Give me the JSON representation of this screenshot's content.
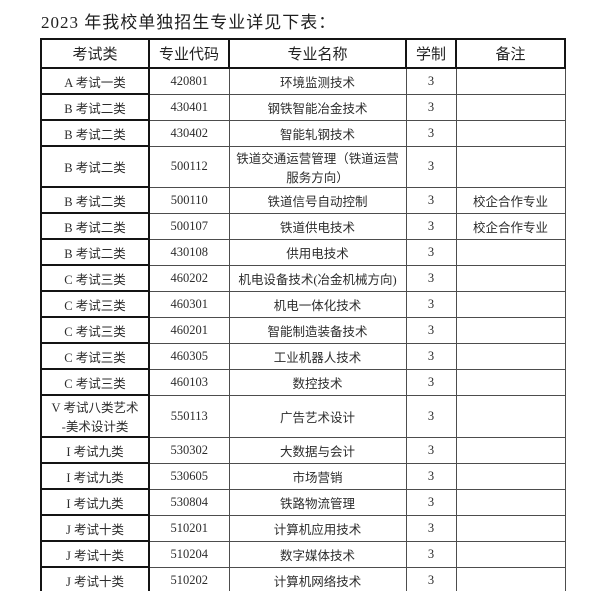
{
  "page": {
    "title": "2023 年我校单独招生专业详见下表："
  },
  "table": {
    "headers": [
      "考试类",
      "专业代码",
      "专业名称",
      "学制",
      "备注"
    ],
    "rows": [
      {
        "category": "A 考试一类",
        "code": "420801",
        "name": "环境监测技术",
        "years": "3",
        "note": ""
      },
      {
        "category": "B 考试二类",
        "code": "430401",
        "name": "钢铁智能冶金技术",
        "years": "3",
        "note": ""
      },
      {
        "category": "B 考试二类",
        "code": "430402",
        "name": "智能轧钢技术",
        "years": "3",
        "note": ""
      },
      {
        "category": "B 考试二类",
        "code": "500112",
        "name": "铁道交通运营管理（铁道运营\n服务方向）",
        "years": "3",
        "note": ""
      },
      {
        "category": "B 考试二类",
        "code": "500110",
        "name": "铁道信号自动控制",
        "years": "3",
        "note": "校企合作专业"
      },
      {
        "category": "B 考试二类",
        "code": "500107",
        "name": "铁道供电技术",
        "years": "3",
        "note": "校企合作专业"
      },
      {
        "category": "B 考试二类",
        "code": "430108",
        "name": "供用电技术",
        "years": "3",
        "note": ""
      },
      {
        "category": "C 考试三类",
        "code": "460202",
        "name": "机电设备技术(冶金机械方向)",
        "years": "3",
        "note": ""
      },
      {
        "category": "C 考试三类",
        "code": "460301",
        "name": "机电一体化技术",
        "years": "3",
        "note": ""
      },
      {
        "category": "C 考试三类",
        "code": "460201",
        "name": "智能制造装备技术",
        "years": "3",
        "note": ""
      },
      {
        "category": "C 考试三类",
        "code": "460305",
        "name": "工业机器人技术",
        "years": "3",
        "note": ""
      },
      {
        "category": "C 考试三类",
        "code": "460103",
        "name": "数控技术",
        "years": "3",
        "note": ""
      },
      {
        "category": "V 考试八类艺术\n-美术设计类",
        "code": "550113",
        "name": "广告艺术设计",
        "years": "3",
        "note": ""
      },
      {
        "category": "I 考试九类",
        "code": "530302",
        "name": "大数据与会计",
        "years": "3",
        "note": ""
      },
      {
        "category": "I 考试九类",
        "code": "530605",
        "name": "市场营销",
        "years": "3",
        "note": ""
      },
      {
        "category": "I 考试九类",
        "code": "530804",
        "name": "铁路物流管理",
        "years": "3",
        "note": ""
      },
      {
        "category": "J 考试十类",
        "code": "510201",
        "name": "计算机应用技术",
        "years": "3",
        "note": ""
      },
      {
        "category": "J 考试十类",
        "code": "510204",
        "name": "数字媒体技术",
        "years": "3",
        "note": ""
      },
      {
        "category": "J 考试十类",
        "code": "510202",
        "name": "计算机网络技术",
        "years": "3",
        "note": ""
      }
    ]
  }
}
